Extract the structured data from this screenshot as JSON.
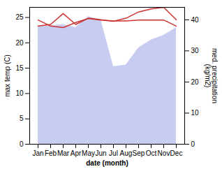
{
  "chart_data": {
    "type": "line",
    "categories": [
      "Jan",
      "Feb",
      "Mar",
      "Apr",
      "May",
      "Jun",
      "Jul",
      "Aug",
      "Sep",
      "Oct",
      "Nov",
      "Dec"
    ],
    "series": [
      {
        "type": "area",
        "color": "#c8ccf0",
        "axis": "y2",
        "values": [
          38.0,
          38.0,
          38.5,
          37.5,
          41.0,
          40.0,
          25.0,
          25.5,
          31.0,
          33.5,
          35.0,
          37.5
        ]
      },
      {
        "type": "line",
        "color": "#cc3333",
        "axis": "y2",
        "values": [
          38.0,
          38.5,
          42.0,
          38.5,
          40.5,
          40.0,
          39.5,
          40.5,
          42.5,
          43.5,
          44.0,
          40.0
        ]
      },
      {
        "type": "line",
        "color": "#cc3333",
        "values": [
          24.5,
          23.3,
          23.0,
          24.0,
          24.8,
          24.5,
          24.3,
          24.3,
          24.5,
          24.5,
          24.5,
          23.3
        ]
      }
    ],
    "xlabel": "date (month)",
    "ylabel": "max temp (C)",
    "y2label": "med. precipitation\n(kg/m2)",
    "ylim": [
      0,
      27
    ],
    "yticks": [
      0,
      5,
      10,
      15,
      20,
      25
    ],
    "y2lim": [
      0,
      44
    ],
    "y2ticks": [
      0,
      10,
      20,
      30,
      40
    ]
  }
}
